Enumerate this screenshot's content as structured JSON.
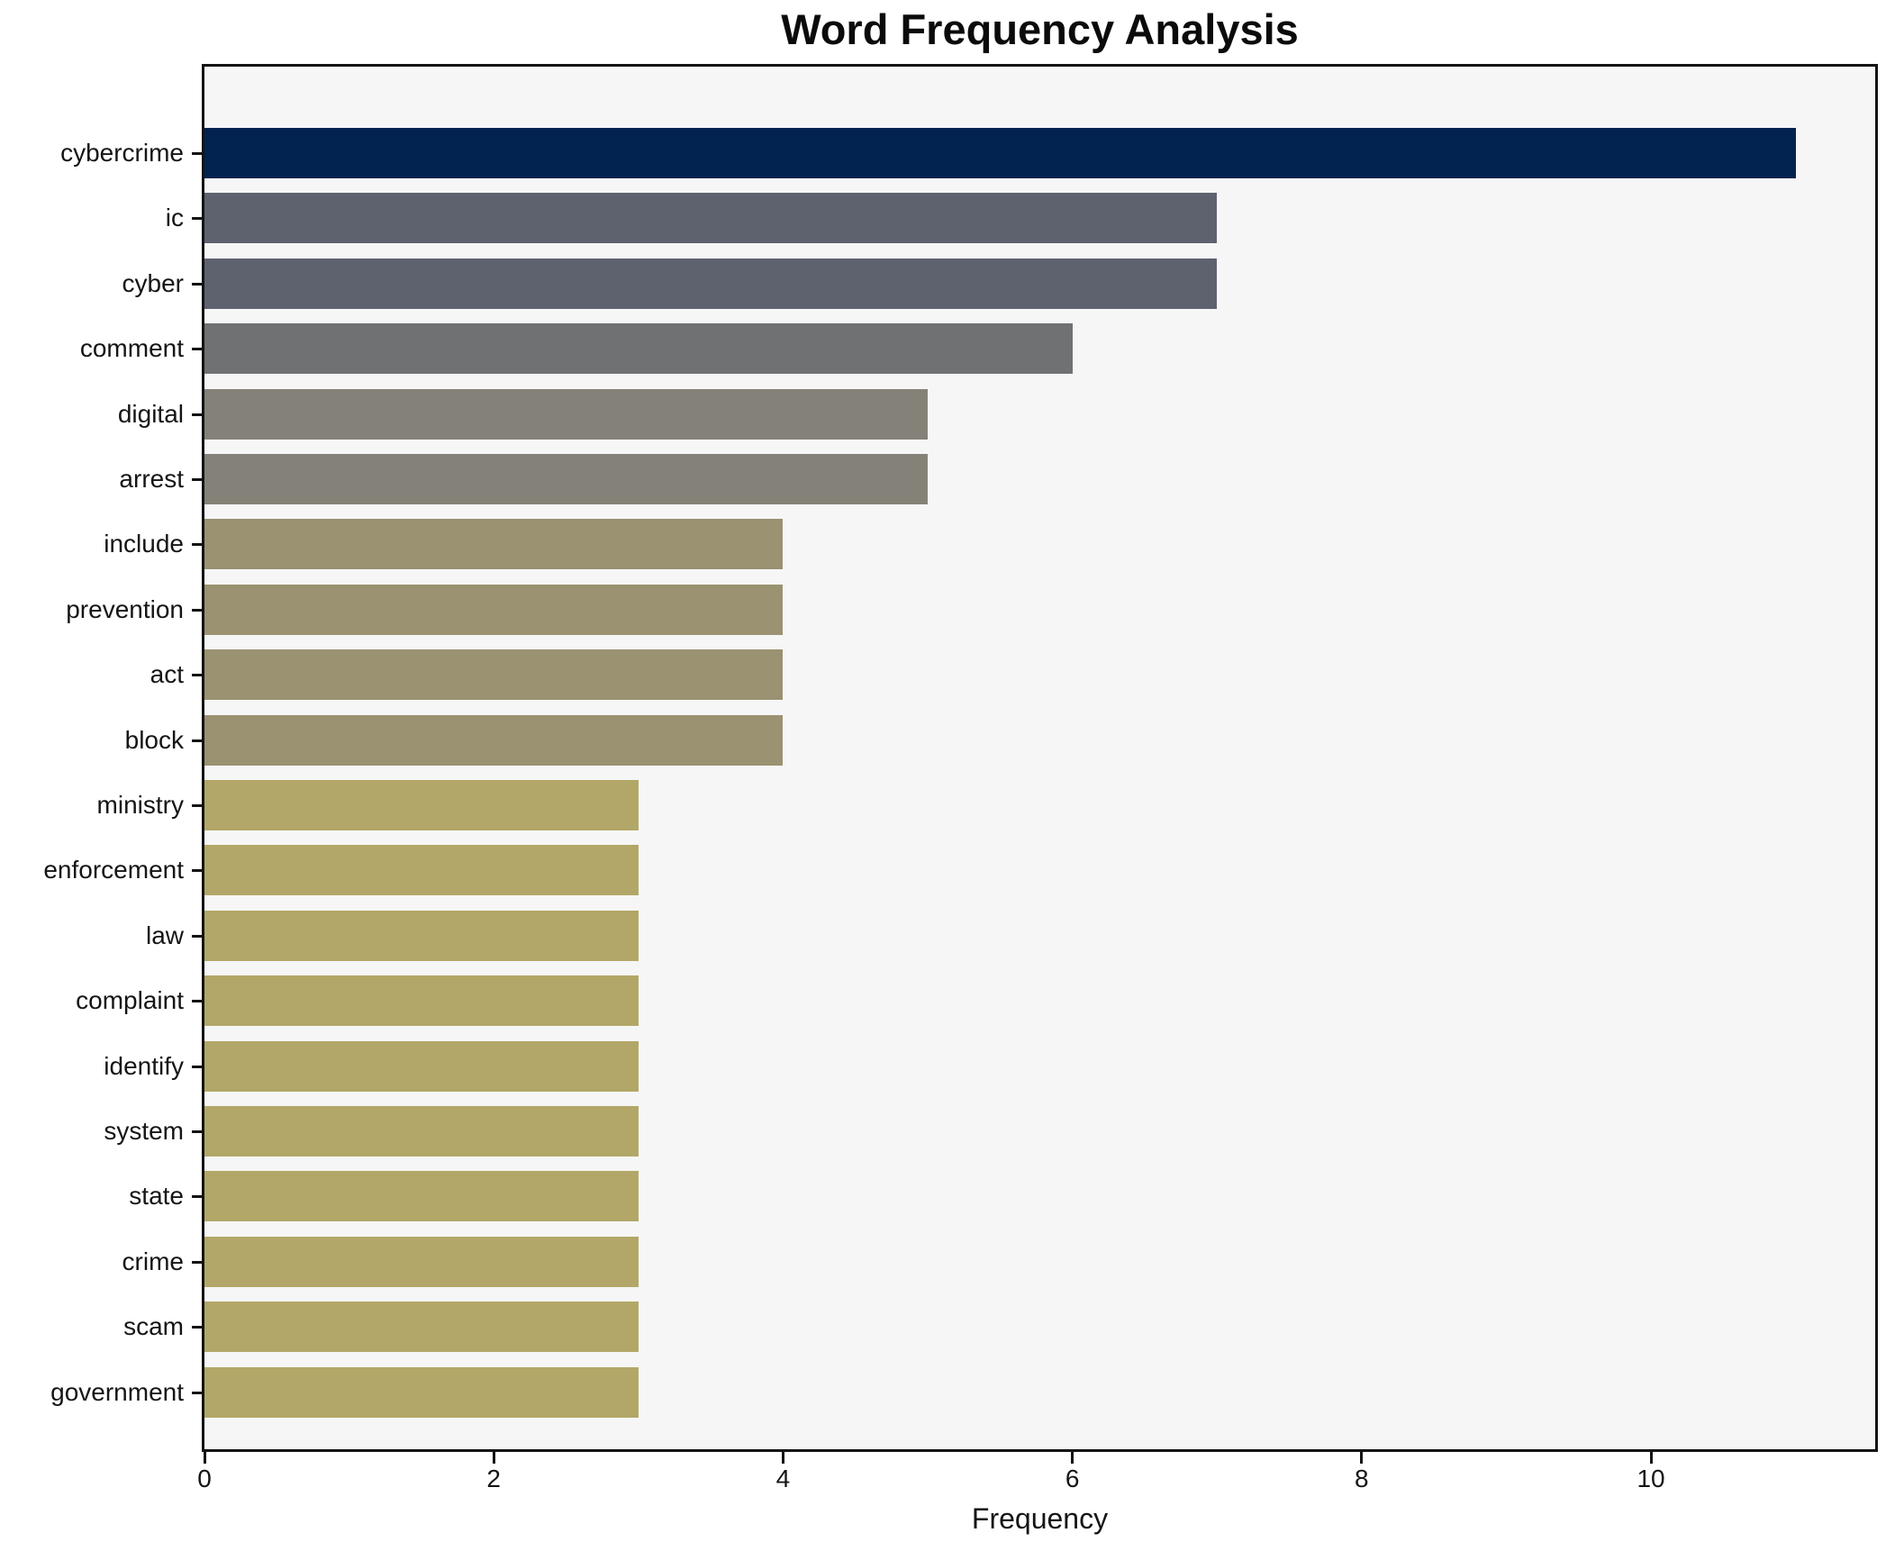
{
  "chart_data": {
    "type": "bar",
    "orientation": "horizontal",
    "title": "Word Frequency Analysis",
    "xlabel": "Frequency",
    "ylabel": "",
    "categories": [
      "cybercrime",
      "ic",
      "cyber",
      "comment",
      "digital",
      "arrest",
      "include",
      "prevention",
      "act",
      "block",
      "ministry",
      "enforcement",
      "law",
      "complaint",
      "identify",
      "system",
      "state",
      "crime",
      "scam",
      "government"
    ],
    "values": [
      11,
      7,
      7,
      6,
      5,
      5,
      4,
      4,
      4,
      4,
      3,
      3,
      3,
      3,
      3,
      3,
      3,
      3,
      3,
      3
    ],
    "bar_colors": [
      "#02234f",
      "#5e626f",
      "#5e626f",
      "#707173",
      "#848278",
      "#848278",
      "#9a9270",
      "#9a9270",
      "#9a9270",
      "#9a9270",
      "#b2a768",
      "#b2a768",
      "#b2a768",
      "#b2a768",
      "#b2a768",
      "#b2a768",
      "#b2a768",
      "#b2a768",
      "#b2a768",
      "#b2a768"
    ],
    "xlim": [
      0,
      11.55
    ],
    "xticks": [
      0,
      2,
      4,
      6,
      8,
      10
    ],
    "grid": false,
    "legend": null,
    "plot_background": "#f6f6f7",
    "figure_background": "#ffffff",
    "spine_color": "#141414"
  }
}
